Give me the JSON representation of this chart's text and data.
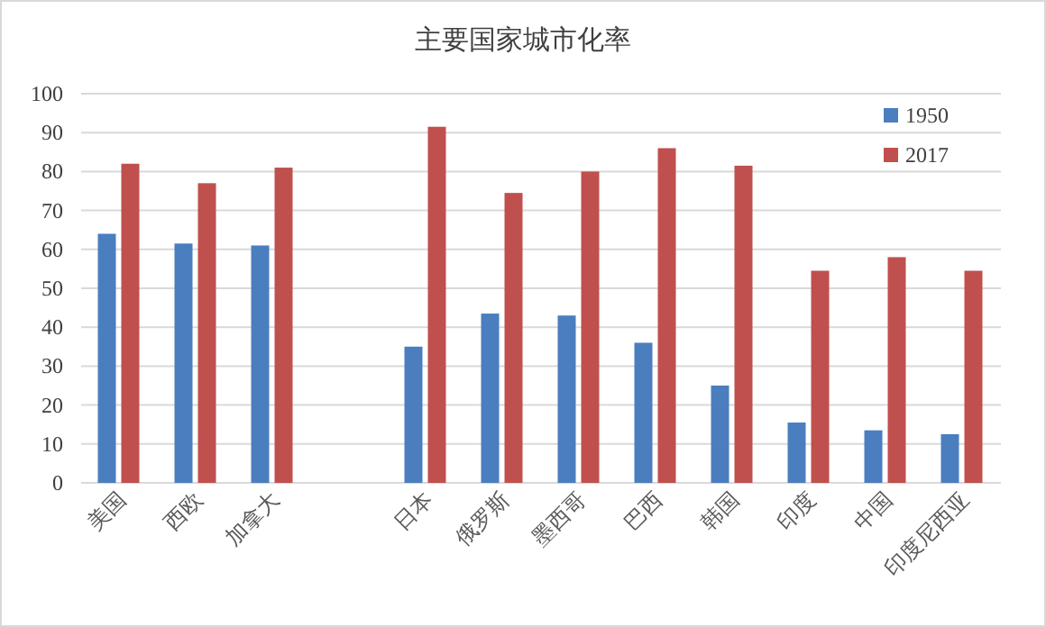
{
  "chart_data": {
    "type": "bar",
    "title": "主要国家城市化率",
    "categories": [
      "美国",
      "西欧",
      "加拿大",
      null,
      "日本",
      "俄罗斯",
      "墨西哥",
      "巴西",
      "韩国",
      "印度",
      "中国",
      "印度尼西亚"
    ],
    "series": [
      {
        "name": "1950",
        "color": "#4a7ebf",
        "values": [
          64,
          61.5,
          61,
          null,
          35,
          43.5,
          43,
          36,
          25,
          15.5,
          13.5,
          12.5
        ]
      },
      {
        "name": "2017",
        "color": "#c0504d",
        "values": [
          82,
          77,
          81,
          null,
          91.5,
          74.5,
          80,
          86,
          81.5,
          54.5,
          58,
          54.5
        ]
      }
    ],
    "ylim": [
      0,
      100
    ],
    "yticks": [
      0,
      10,
      20,
      30,
      40,
      50,
      60,
      70,
      80,
      90,
      100
    ],
    "grid": "y",
    "legend": "top right"
  }
}
